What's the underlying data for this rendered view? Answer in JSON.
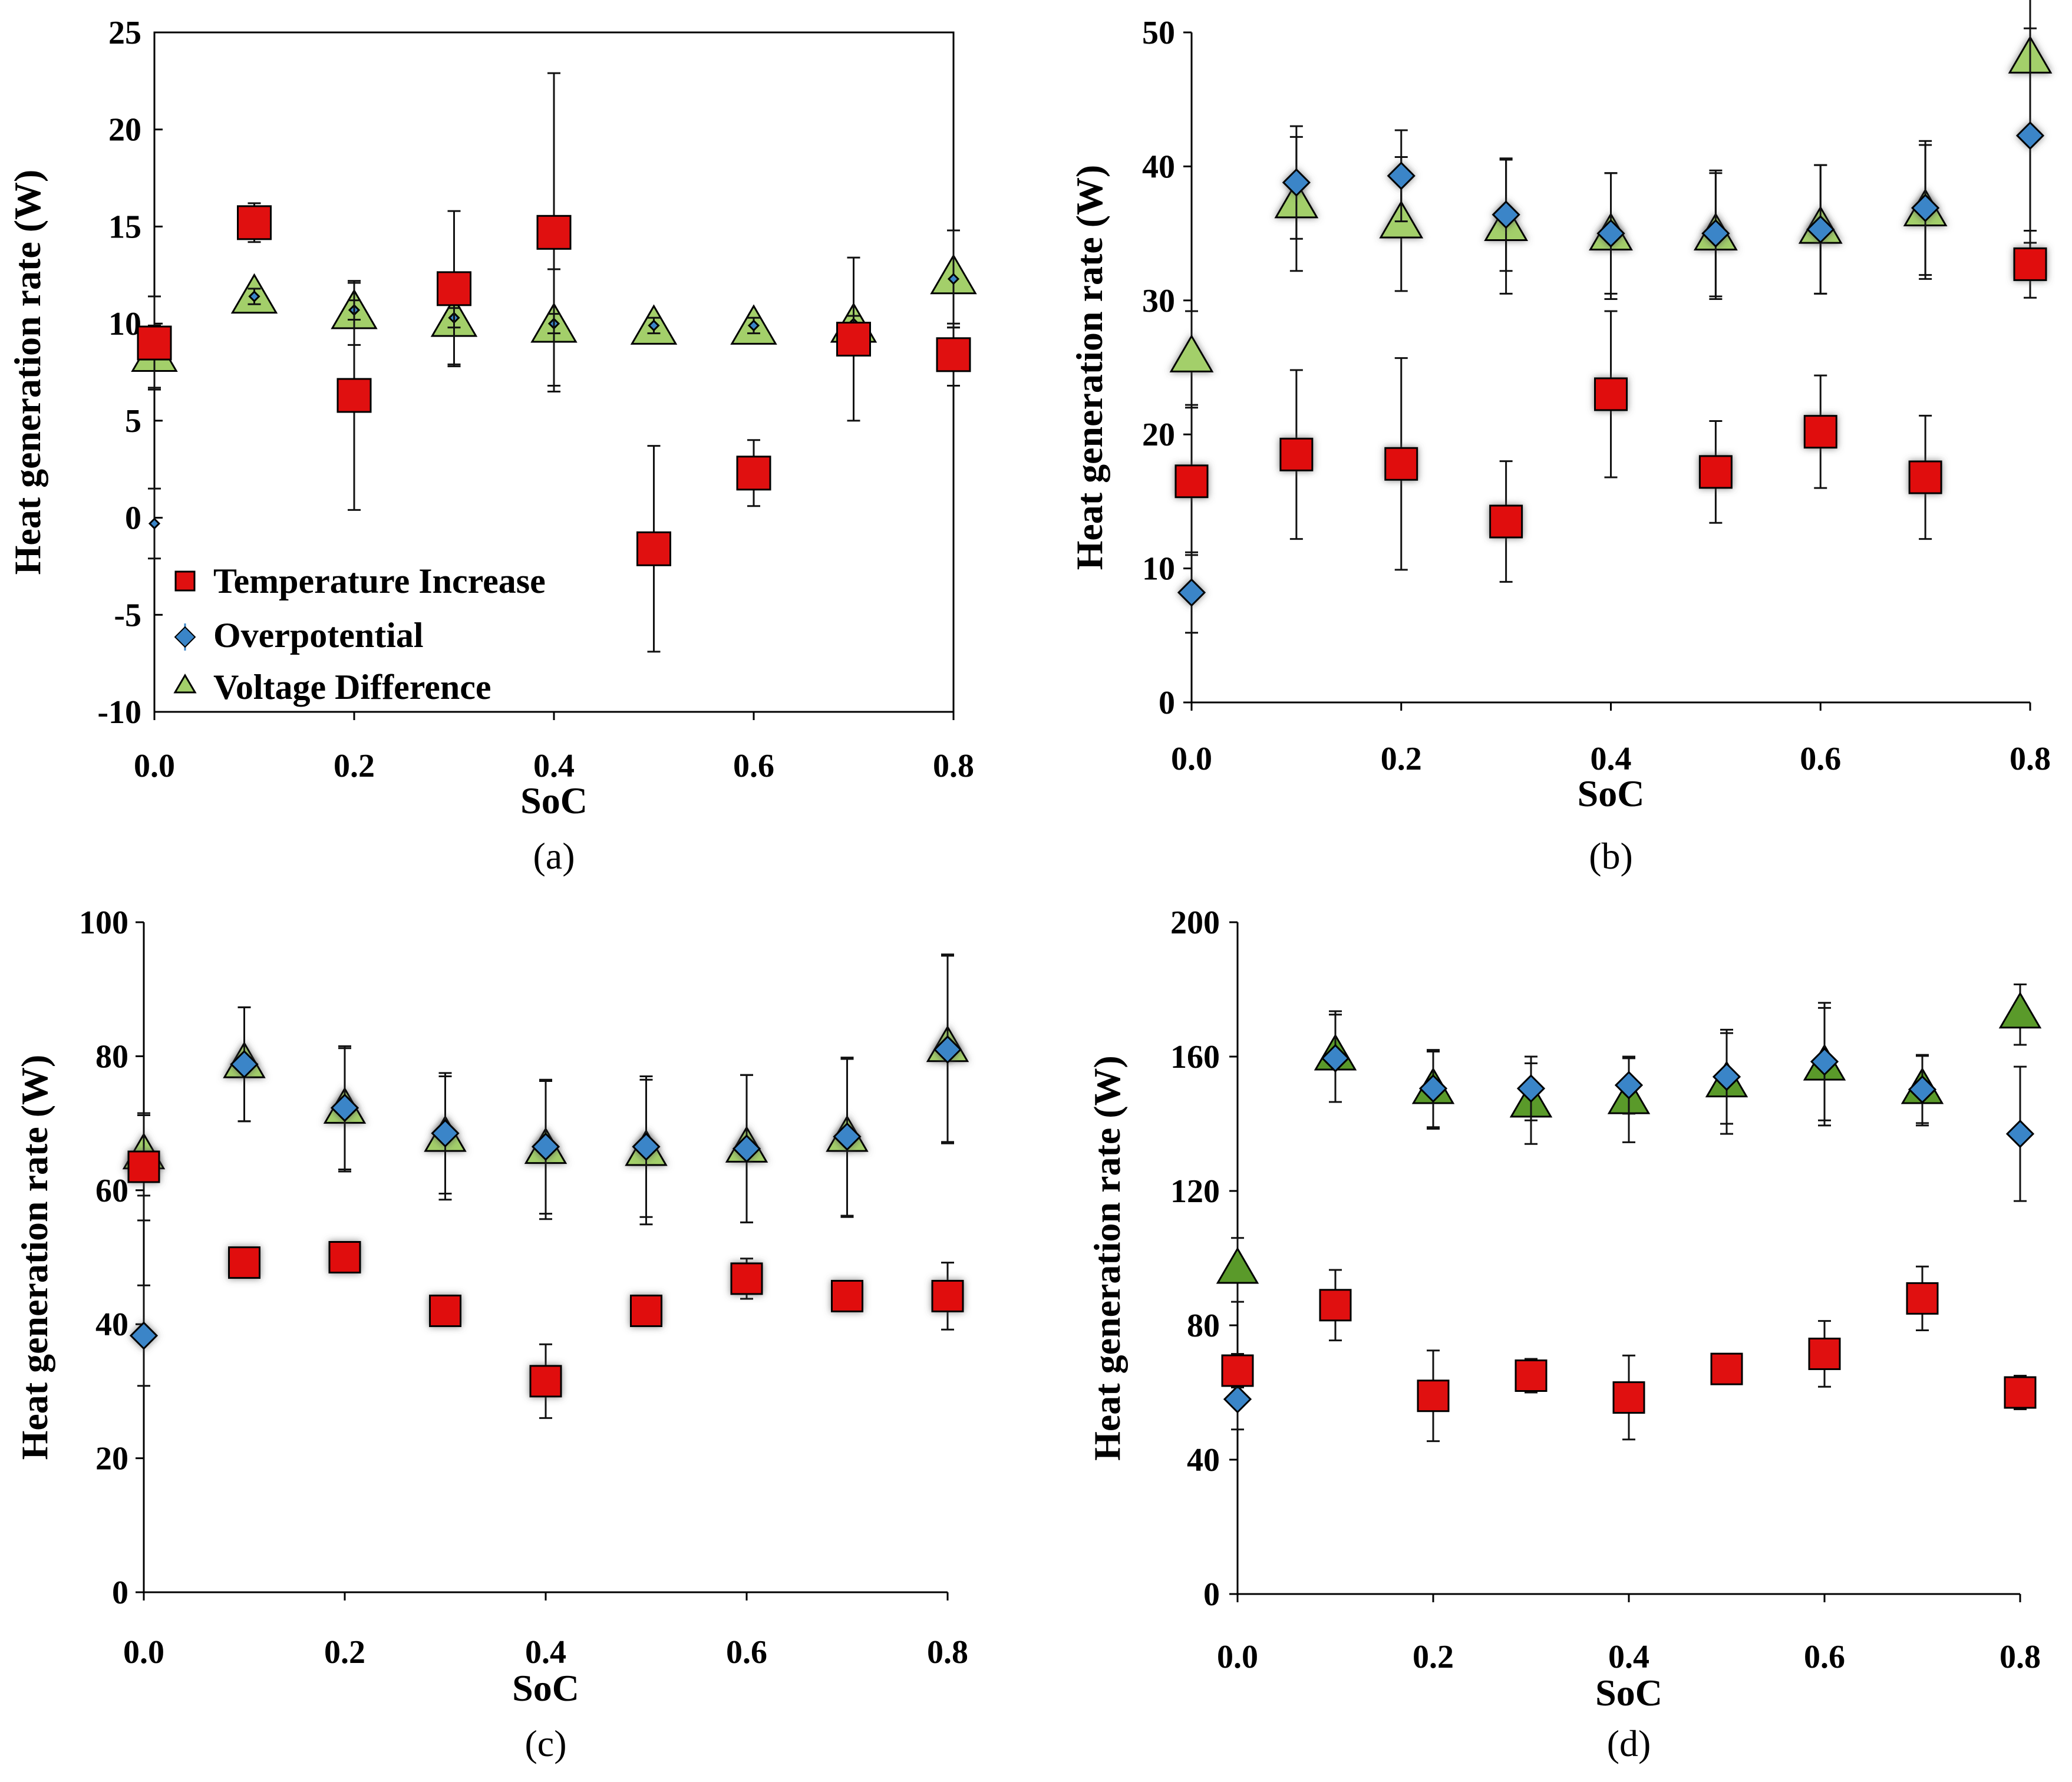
{
  "legend_labels": [
    "Temperature Increase",
    "Overpotential",
    "Voltage Difference"
  ],
  "colors": {
    "temperature": "#e01010",
    "overpotential": "#3a85c8",
    "voltage_light": "#a3cf6a",
    "voltage_dark": "#5a9a2a"
  },
  "chart_data": [
    {
      "type": "scatter",
      "caption": "(a)",
      "xlabel": "SoC",
      "ylabel": "Heat generation rate (W)",
      "xlim": [
        0,
        0.8
      ],
      "ylim": [
        -10,
        25
      ],
      "xticks": [
        "0.0",
        "0.2",
        "0.4",
        "0.6",
        "0.8"
      ],
      "yticks": [
        "-10",
        "-5",
        "0",
        "5",
        "10",
        "15",
        "20",
        "25"
      ],
      "x": [
        0,
        0.1,
        0.2,
        0.3,
        0.4,
        0.5,
        0.6,
        0.7,
        0.8
      ],
      "series": [
        {
          "name": "Temperature Increase",
          "values": [
            9,
            15.2,
            6.3,
            11.8,
            14.7,
            -1.6,
            2.3,
            9.2,
            8.4
          ],
          "err": [
            2.4,
            1,
            5.9,
            4,
            8.2,
            5.3,
            1.7,
            4.2,
            1.6
          ]
        },
        {
          "name": "Overpotential",
          "values": [
            -0.3,
            11.4,
            10.7,
            10.3,
            10,
            9.9,
            9.9,
            10,
            12.3
          ],
          "err": [
            1.8,
            0.4,
            0.5,
            0.5,
            0.5,
            0.4,
            0.4,
            0.4,
            2.5
          ]
        },
        {
          "name": "Voltage Difference",
          "values": [
            8.3,
            11.3,
            10.5,
            10.1,
            9.8,
            9.7,
            9.7,
            9.8,
            12.3
          ],
          "err": [
            1.6,
            0.4,
            1.6,
            2.2,
            3,
            0.4,
            0.4,
            0.5,
            2.5
          ]
        }
      ]
    },
    {
      "type": "scatter",
      "caption": "(b)",
      "xlabel": "SoC",
      "ylabel": "Heat generation rate (W)",
      "xlim": [
        0,
        0.8
      ],
      "ylim": [
        0,
        50
      ],
      "xticks": [
        "0.0",
        "0.2",
        "0.4",
        "0.6",
        "0.8"
      ],
      "yticks": [
        "0",
        "10",
        "20",
        "30",
        "40",
        "50"
      ],
      "x": [
        0,
        0.1,
        0.2,
        0.3,
        0.4,
        0.5,
        0.6,
        0.7,
        0.8
      ],
      "series": [
        {
          "name": "Temperature Increase",
          "values": [
            16.5,
            18.5,
            17.8,
            13.5,
            23,
            17.2,
            20.2,
            16.8,
            32.7
          ],
          "err": [
            5.5,
            6.3,
            7.9,
            4.5,
            6.2,
            3.8,
            4.2,
            4.6,
            2.5
          ]
        },
        {
          "name": "Overpotential",
          "values": [
            8.2,
            38.8,
            39.3,
            36.4,
            35,
            35,
            35.3,
            36.9,
            42.3
          ],
          "err": [
            3,
            4.2,
            3.4,
            4.2,
            4.5,
            4.7,
            4.8,
            5,
            8
          ]
        },
        {
          "name": "Voltage Difference",
          "values": [
            25.7,
            37.2,
            35.7,
            35.5,
            34.8,
            34.8,
            35.3,
            36.6,
            48
          ],
          "err": [
            3.5,
            5,
            5,
            5,
            4.7,
            4.7,
            4.8,
            5,
            6
          ]
        }
      ]
    },
    {
      "type": "scatter",
      "caption": "(c)",
      "xlabel": "SoC",
      "ylabel": "Heat generation rate (W)",
      "xlim": [
        0,
        0.8
      ],
      "ylim": [
        0,
        100
      ],
      "xticks": [
        "0.0",
        "0.2",
        "0.4",
        "0.6",
        "0.8"
      ],
      "yticks": [
        "0",
        "20",
        "40",
        "60",
        "80",
        "100"
      ],
      "x": [
        0,
        0.1,
        0.2,
        0.3,
        0.4,
        0.5,
        0.6,
        0.7,
        0.8
      ],
      "series": [
        {
          "name": "Temperature Increase",
          "values": [
            63.5,
            49.2,
            50,
            42,
            31.5,
            42,
            46.8,
            44.2,
            44.2
          ],
          "err": [
            8,
            0,
            0,
            0,
            5.5,
            0,
            3,
            0,
            5
          ]
        },
        {
          "name": "Overpotential",
          "values": [
            38.3,
            78.8,
            72.3,
            68.5,
            66.5,
            66.5,
            66.2,
            68,
            81
          ],
          "err": [
            7.5,
            8.5,
            9.2,
            9,
            10,
            10.5,
            11,
            11.8,
            14
          ]
        },
        {
          "name": "Voltage Difference",
          "values": [
            65.2,
            78.8,
            72,
            67.8,
            66,
            65.7,
            66.2,
            67.8,
            81.2
          ],
          "err": [
            6,
            8.5,
            9.2,
            9.2,
            10.3,
            10.8,
            11,
            11.8,
            14
          ]
        }
      ]
    },
    {
      "type": "scatter",
      "caption": "(d)",
      "xlabel": "SoC",
      "ylabel": "Heat generation rate (W)",
      "xlim": [
        0,
        0.8
      ],
      "ylim": [
        0,
        200
      ],
      "xticks": [
        "0.0",
        "0.2",
        "0.4",
        "0.6",
        "0.8"
      ],
      "yticks": [
        "0",
        "40",
        "80",
        "120",
        "160",
        "200"
      ],
      "x": [
        0,
        0.1,
        0.2,
        0.3,
        0.4,
        0.5,
        0.6,
        0.7,
        0.8
      ],
      "series": [
        {
          "name": "Temperature Increase",
          "values": [
            66.5,
            86,
            59,
            65,
            58.5,
            67,
            71.5,
            88,
            60
          ],
          "err": [
            5,
            10.5,
            13.5,
            5,
            12.5,
            3,
            9.8,
            9.5,
            5
          ]
        },
        {
          "name": "Overpotential",
          "values": [
            58,
            159.5,
            150.5,
            150.5,
            151.5,
            154,
            158.5,
            150.2,
            137
          ],
          "err": [
            9,
            13,
            11.5,
            9.5,
            8.5,
            14,
            17.5,
            10,
            20
          ]
        },
        {
          "name": "Voltage Difference",
          "values": [
            96.5,
            160,
            150,
            146,
            147,
            152,
            157,
            150,
            172.5
          ],
          "err": [
            9.5,
            13.5,
            11.5,
            12,
            12.5,
            15,
            17.5,
            10.5,
            9
          ]
        }
      ]
    }
  ]
}
